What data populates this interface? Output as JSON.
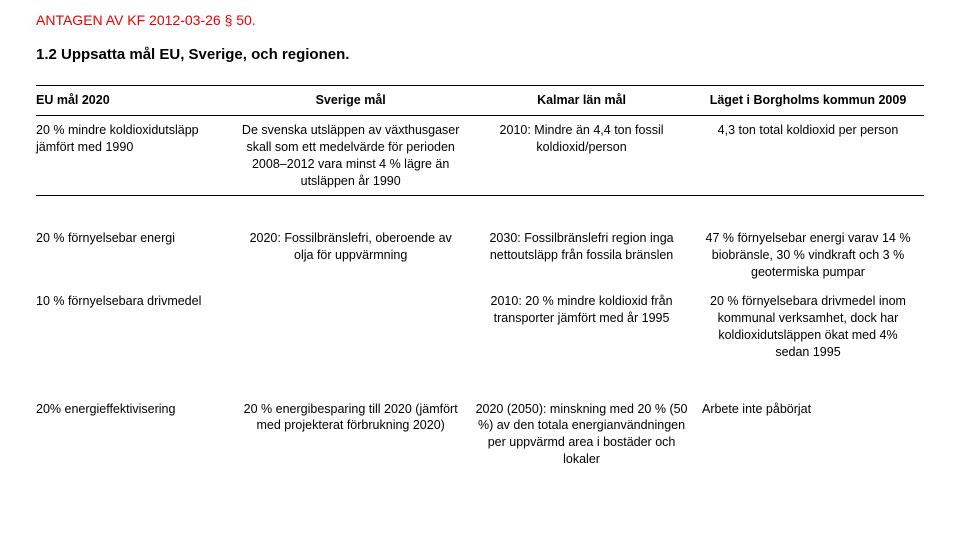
{
  "doc_header": "ANTAGEN AV KF 2012-03-26 § 50.",
  "section_title": "1.2 Uppsatta mål EU, Sverige, och regionen.",
  "columns": {
    "c1": "EU mål 2020",
    "c2": "Sverige mål",
    "c3": "Kalmar län mål",
    "c4": "Läget i Borgholms kommun 2009"
  },
  "rows": [
    {
      "c1": "20 % mindre koldioxidutsläpp jämfört med 1990",
      "c2": "De svenska utsläppen av växthusgaser skall som ett medelvärde för perioden 2008–2012 vara minst 4 % lägre än utsläppen år 1990",
      "c3": "2010: Mindre än 4,4 ton fossil koldioxid/person",
      "c4": "4,3 ton total koldioxid per person"
    },
    {
      "c1": "20 % förnyelsebar energi",
      "c2": "2020: Fossilbränslefri, oberoende av olja för uppvärmning",
      "c3": "2030: Fossilbränslefri region inga nettoutsläpp från fossila bränslen",
      "c4": "47 % förnyelsebar energi varav 14 % biobränsle, 30 % vindkraft och 3 % geotermiska pumpar"
    },
    {
      "c1": "10 % förnyelsebara drivmedel",
      "c2": "",
      "c3": "2010: 20 % mindre koldioxid från transporter jämfört med år 1995",
      "c4": "20 % förnyelsebara drivmedel inom kommunal verksamhet, dock har koldioxidutsläppen ökat med 4% sedan 1995"
    },
    {
      "c1": "20% energieffektivisering",
      "c2": "20 % energibesparing till 2020 (jämfört med projekterat förbrukning 2020)",
      "c3": "2020 (2050): minskning med 20 % (50 %) av den totala energianvändningen per uppvärmd area i bostäder och lokaler",
      "c4": "Arbete inte påbörjat"
    }
  ]
}
